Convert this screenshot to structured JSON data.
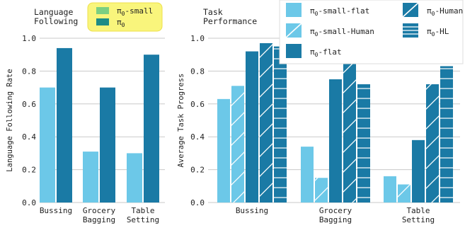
{
  "chart_data": [
    {
      "type": "bar",
      "title": "Language\nFollowing",
      "ylabel": "Language Following Rate",
      "categories": [
        "Bussing",
        "Grocery\nBagging",
        "Table\nSetting"
      ],
      "ylim": [
        0,
        1.0
      ],
      "yticks": [
        "0.0",
        "0.2",
        "0.4",
        "0.6",
        "0.8",
        "1.0"
      ],
      "grid": "horizontal",
      "legend_placement": "top-right",
      "series": [
        {
          "name": "π0-small",
          "color": "#6cc8e8",
          "values": [
            0.7,
            0.31,
            0.3
          ]
        },
        {
          "name": "π0",
          "color": "#1a7aa5",
          "values": [
            0.94,
            0.7,
            0.9
          ]
        }
      ]
    },
    {
      "type": "bar",
      "title": "Task\nPerformance",
      "ylabel": "Average Task Progress",
      "categories": [
        "Bussing",
        "Grocery\nBagging",
        "Table\nSetting"
      ],
      "ylim": [
        0,
        1.0
      ],
      "yticks": [
        "0.0",
        "0.2",
        "0.4",
        "0.6",
        "0.8",
        "1.0"
      ],
      "grid": "horizontal",
      "legend_placement": "top-right",
      "series": [
        {
          "name": "π0-small-flat",
          "color": "#6cc8e8",
          "hatch": "none",
          "values": [
            0.63,
            0.34,
            0.16
          ]
        },
        {
          "name": "π0-small-Human",
          "color": "#6cc8e8",
          "hatch": "diagonal",
          "values": [
            0.71,
            0.15,
            0.11
          ]
        },
        {
          "name": "π0-flat",
          "color": "#1a7aa5",
          "hatch": "none",
          "values": [
            0.92,
            0.75,
            0.38
          ]
        },
        {
          "name": "π0-Human",
          "color": "#1a7aa5",
          "hatch": "diagonal",
          "values": [
            0.97,
            0.85,
            0.72
          ]
        },
        {
          "name": "π0-HL",
          "color": "#1a7aa5",
          "hatch": "horizontal",
          "values": [
            0.95,
            0.72,
            0.83
          ]
        }
      ]
    }
  ]
}
